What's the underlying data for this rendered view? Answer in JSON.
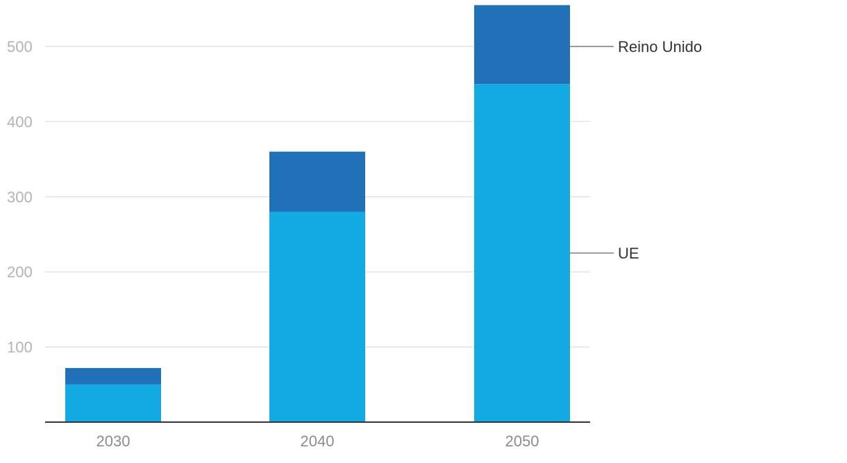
{
  "chart_data": {
    "type": "bar",
    "stacked": true,
    "categories": [
      "2030",
      "2040",
      "2050"
    ],
    "series": [
      {
        "name": "UE",
        "values": [
          50,
          280,
          450
        ],
        "color": "#13a9e3"
      },
      {
        "name": "Reino Unido",
        "values": [
          22,
          80,
          105
        ],
        "color": "#2171b9"
      }
    ],
    "yticks": [
      100,
      200,
      300,
      400,
      500
    ],
    "ylim": [
      0,
      555
    ],
    "grid": true,
    "legend_placement": "right, inline labels with leader lines",
    "title": "",
    "xlabel": "",
    "ylabel": ""
  }
}
